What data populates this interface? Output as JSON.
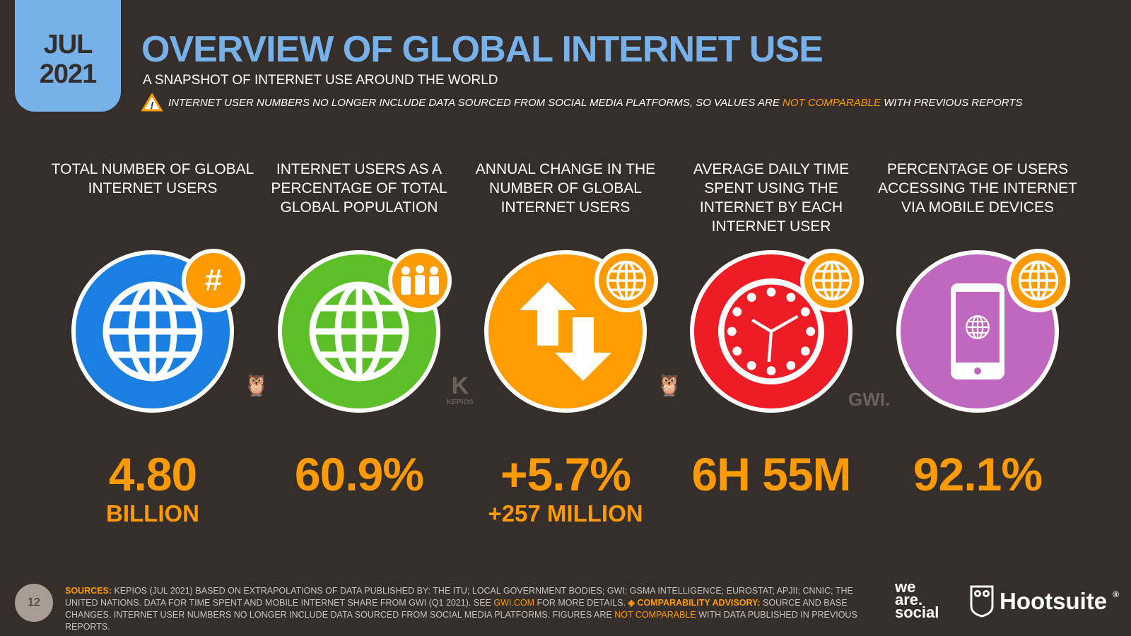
{
  "date": {
    "month": "JUL",
    "year": "2021"
  },
  "title": "OVERVIEW OF GLOBAL INTERNET USE",
  "subtitle": "A SNAPSHOT OF INTERNET USE AROUND THE WORLD",
  "warning": {
    "pre": "INTERNET USER NUMBERS NO LONGER INCLUDE DATA SOURCED FROM SOCIAL MEDIA PLATFORMS, SO VALUES ARE ",
    "highlight": "NOT COMPARABLE",
    "post": " WITH PREVIOUS REPORTS"
  },
  "metrics": [
    {
      "label": "TOTAL NUMBER OF GLOBAL INTERNET USERS",
      "value": "4.80",
      "sub": "BILLION",
      "color": "#1a7fe0",
      "icon": "globe-icon",
      "badge": "hash-icon"
    },
    {
      "label": "INTERNET USERS AS A PERCENTAGE OF TOTAL GLOBAL POPULATION",
      "value": "60.9%",
      "sub": "",
      "color": "#5cbf27",
      "icon": "globe-icon",
      "badge": "people-icon"
    },
    {
      "label": "ANNUAL CHANGE IN THE NUMBER OF GLOBAL INTERNET USERS",
      "value": "+5.7%",
      "sub": "+257 MILLION",
      "color": "#ff9d00",
      "icon": "up-down-arrows-icon",
      "badge": "globe-icon"
    },
    {
      "label": "AVERAGE DAILY TIME SPENT USING THE INTERNET BY EACH INTERNET USER",
      "value": "6H 55M",
      "sub": "",
      "color": "#ee1c24",
      "icon": "clock-icon",
      "badge": "globe-icon"
    },
    {
      "label": "PERCENTAGE OF USERS ACCESSING THE INTERNET VIA MOBILE DEVICES",
      "value": "92.1%",
      "sub": "",
      "color": "#c068c0",
      "icon": "mobile-phone-icon",
      "badge": "globe-icon"
    }
  ],
  "watermarks": {
    "kepios": "KEPIOS",
    "gwi": "GWI."
  },
  "footer": {
    "page": "12",
    "sources_label": "SOURCES:",
    "sources_text": " KEPIOS (JUL 2021) BASED ON EXTRAPOLATIONS OF DATA PUBLISHED BY: THE ITU; LOCAL GOVERNMENT BODIES; GWI; GSMA INTELLIGENCE; EUROSTAT; APJII; CNNIC; THE UNITED NATIONS. DATA FOR TIME SPENT AND MOBILE INTERNET SHARE FROM GWI (Q1 2021). SEE ",
    "link": "GWI.COM",
    "mid": " FOR MORE DETAILS. ",
    "advisory_label": "◈ COMPARABILITY ADVISORY:",
    "advisory_text": " SOURCE AND BASE CHANGES. INTERNET USER NUMBERS NO LONGER INCLUDE DATA SOURCED FROM SOCIAL MEDIA PLATFORMS. FIGURES ARE ",
    "not_comparable": "NOT COMPARABLE",
    "end": " WITH DATA PUBLISHED IN PREVIOUS REPORTS."
  },
  "logos": {
    "we_are_social": [
      "we",
      "are.",
      "social"
    ],
    "hootsuite": "Hootsuite"
  }
}
